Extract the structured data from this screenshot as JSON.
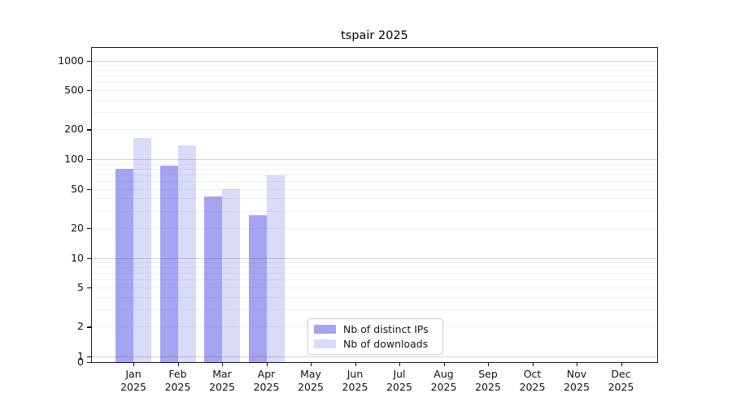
{
  "title": "tspair 2025",
  "chart_data": {
    "type": "bar",
    "title": "tspair 2025",
    "categories": [
      "Jan 2025",
      "Feb 2025",
      "Mar 2025",
      "Apr 2025",
      "May 2025",
      "Jun 2025",
      "Jul 2025",
      "Aug 2025",
      "Sep 2025",
      "Oct 2025",
      "Nov 2025",
      "Dec 2025"
    ],
    "x_months": [
      "Jan",
      "Feb",
      "Mar",
      "Apr",
      "May",
      "Jun",
      "Jul",
      "Aug",
      "Sep",
      "Oct",
      "Nov",
      "Dec"
    ],
    "x_year": "2025",
    "series": [
      {
        "name": "Nb of distinct IPs",
        "color": "#a4a4f2",
        "values": [
          80,
          86,
          42,
          27,
          0,
          0,
          0,
          0,
          0,
          0,
          0,
          0
        ]
      },
      {
        "name": "Nb of downloads",
        "color": "#dadaf9",
        "values": [
          165,
          138,
          50,
          69,
          0,
          0,
          0,
          0,
          0,
          0,
          0,
          0
        ]
      }
    ],
    "yscale": "log",
    "yticks": [
      0,
      1,
      2,
      5,
      10,
      20,
      50,
      100,
      200,
      500,
      1000
    ],
    "ylim": [
      0,
      1340
    ],
    "grid": "horizontal; light minor lines, darker major lines at 1/10/100/1000",
    "legend_position": "lower center"
  },
  "legend": {
    "items": [
      {
        "label": "Nb of distinct IPs",
        "color": "#a4a4f2"
      },
      {
        "label": "Nb of downloads",
        "color": "#dadaf9"
      }
    ]
  },
  "colors": {
    "series_dark": "#a4a4f2",
    "series_light": "#dadaf9",
    "grid_major": "#c6c6c6",
    "grid_minor": "#ececec",
    "spine": "#121212",
    "background": "#ffffff"
  }
}
